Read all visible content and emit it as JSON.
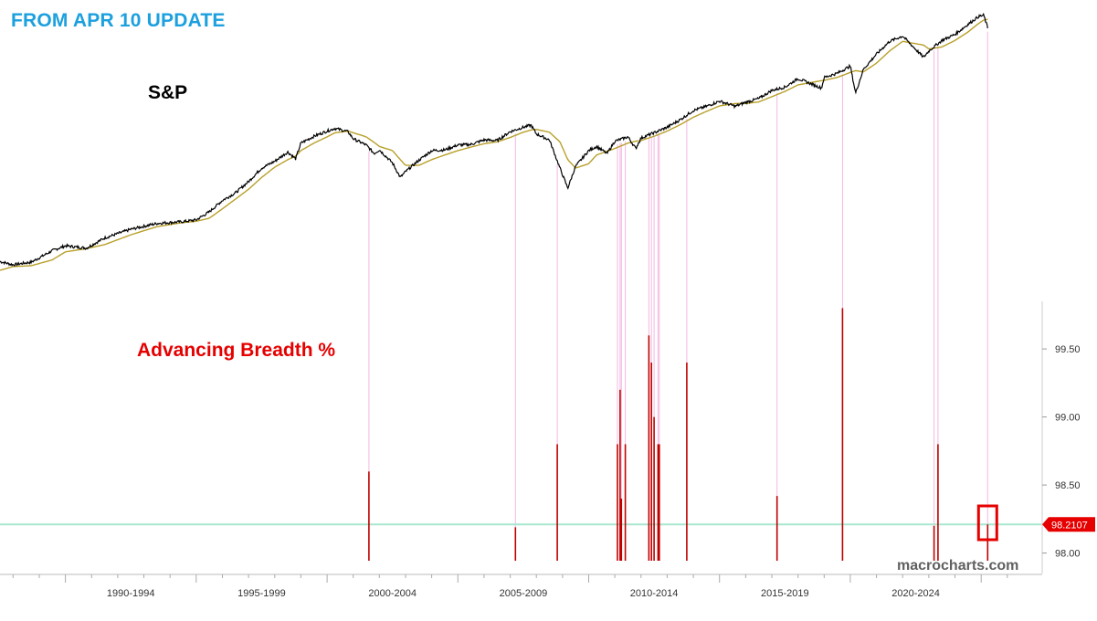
{
  "header": {
    "update_title": "FROM APR 10 UPDATE"
  },
  "colors": {
    "title_blue": "#1ca0de",
    "price_line": "#000000",
    "moving_average": "#b8a02a",
    "breadth_bar": "#c00000",
    "signal_line": "#f2b8e2",
    "threshold_line": "#a8e6cf",
    "badge": "#e60000",
    "axis_text": "#333333"
  },
  "chart_data": [
    {
      "type": "line",
      "title": "S&P",
      "series": [],
      "x": [
        1987.5,
        1988,
        1988.7,
        1989.5,
        1990,
        1990.8,
        1991.5,
        1992.5,
        1993.5,
        1994.5,
        1995,
        1995.5,
        1996,
        1996.5,
        1997,
        1997.5,
        1998,
        1998.5,
        1998.8,
        1999,
        1999.5,
        2000,
        2000.3,
        2000.8,
        2001,
        2001.5,
        2001.8,
        2002,
        2002.5,
        2002.8,
        2003,
        2003.5,
        2004,
        2004.5,
        2005,
        2005.5,
        2006,
        2006.5,
        2007,
        2007.5,
        2007.8,
        2008,
        2008.5,
        2008.9,
        2009.2,
        2009.5,
        2010,
        2010.3,
        2010.7,
        2011,
        2011.5,
        2011.8,
        2012,
        2012.5,
        2013,
        2013.5,
        2014,
        2014.5,
        2015,
        2015.6,
        2016,
        2016.5,
        2017,
        2017.5,
        2018,
        2018.9,
        2019,
        2019.5,
        2020,
        2020.2,
        2020.5,
        2021,
        2021.5,
        2022,
        2022.8,
        2023,
        2023.5,
        2024,
        2024.5,
        2024.9,
        2025.1,
        2025.25
      ],
      "price": [
        279,
        268,
        277,
        320,
        340,
        330,
        375,
        418,
        450,
        460,
        470,
        520,
        600,
        660,
        760,
        900,
        980,
        1100,
        1010,
        1230,
        1340,
        1430,
        1480,
        1420,
        1300,
        1200,
        1080,
        1130,
        960,
        800,
        860,
        990,
        1120,
        1130,
        1200,
        1210,
        1280,
        1270,
        1420,
        1500,
        1540,
        1380,
        1280,
        900,
        700,
        920,
        1120,
        1180,
        1080,
        1260,
        1330,
        1150,
        1310,
        1400,
        1500,
        1650,
        1850,
        1950,
        2080,
        1950,
        2050,
        2150,
        2380,
        2480,
        2760,
        2450,
        2800,
        2950,
        3230,
        2300,
        3100,
        3750,
        4400,
        4700,
        3600,
        3900,
        4450,
        4800,
        5450,
        6000,
        6100,
        5200
      ],
      "moving_average": [
        250,
        262,
        265,
        285,
        315,
        328,
        345,
        390,
        432,
        455,
        462,
        480,
        540,
        610,
        690,
        800,
        910,
        1000,
        1045,
        1120,
        1230,
        1330,
        1400,
        1430,
        1400,
        1330,
        1240,
        1180,
        1120,
        1000,
        930,
        930,
        1000,
        1060,
        1120,
        1170,
        1220,
        1250,
        1320,
        1410,
        1450,
        1460,
        1410,
        1250,
        1000,
        900,
        950,
        1060,
        1110,
        1150,
        1230,
        1260,
        1270,
        1340,
        1430,
        1550,
        1700,
        1830,
        1960,
        2020,
        2020,
        2060,
        2200,
        2350,
        2550,
        2690,
        2700,
        2800,
        2980,
        3050,
        3000,
        3350,
        3900,
        4400,
        4200,
        4000,
        4100,
        4450,
        4950,
        5500,
        5750,
        5800
      ],
      "yscale": "log"
    },
    {
      "type": "bar",
      "title": "Advancing Breadth %",
      "x": [
        2001.6,
        2007.2,
        2008.8,
        2011.1,
        2011.2,
        2011.25,
        2011.4,
        2012.3,
        2012.4,
        2012.5,
        2012.65,
        2012.7,
        2013.75,
        2017.2,
        2019.7,
        2023.2,
        2023.35,
        2025.25
      ],
      "values": [
        98.6,
        98.19,
        98.8,
        98.8,
        99.2,
        98.4,
        98.8,
        99.6,
        99.4,
        99.0,
        98.8,
        98.8,
        99.4,
        98.42,
        99.8,
        98.2,
        98.8,
        98.2107
      ],
      "ylim": [
        97.85,
        99.85
      ],
      "yticks": [
        "99.50",
        "99.00",
        "98.50",
        "98.00"
      ],
      "ytick_values": [
        99.5,
        99.0,
        98.5,
        98.0
      ],
      "threshold": 98.2107,
      "current_value_label": "98.2107"
    }
  ],
  "axis": {
    "x_range": [
      1987.5,
      2026.6
    ],
    "xtick_labels": [
      "1990-1994",
      "1995-1999",
      "2000-2004",
      "2005-2009",
      "2010-2014",
      "2015-2019",
      "2020-2024"
    ],
    "xtick_centers": [
      1992.5,
      1997.5,
      2002.5,
      2007.5,
      2012.5,
      2017.5,
      2022.5
    ],
    "major_ticks": [
      1990,
      1995,
      2000,
      2005,
      2010,
      2015,
      2020,
      2025
    ]
  },
  "watermark": "macrocharts.com"
}
